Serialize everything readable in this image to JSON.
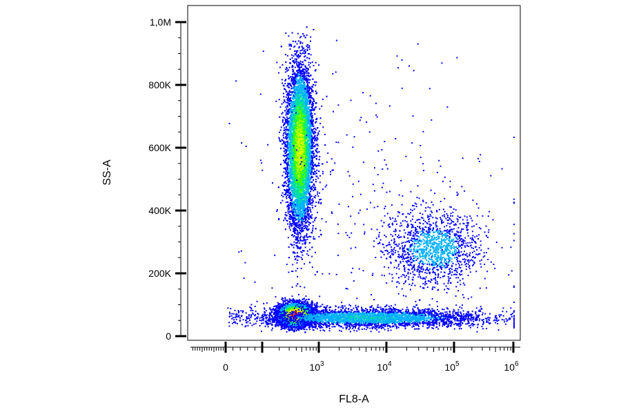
{
  "chart_data": {
    "type": "scatter",
    "style": "density-dot-plot",
    "xlabel": "FL8-A",
    "ylabel": "SS-A",
    "x_scale": "biexponential",
    "y_scale": "linear",
    "ylim": [
      0,
      1000000
    ],
    "xlim": [
      -300,
      1000000
    ],
    "y_ticks": [
      {
        "value": 0,
        "label": "0"
      },
      {
        "value": 200000,
        "label": "200K"
      },
      {
        "value": 400000,
        "label": "400K"
      },
      {
        "value": 600000,
        "label": "600K"
      },
      {
        "value": 800000,
        "label": "800K"
      },
      {
        "value": 1000000,
        "label": "1,0M"
      }
    ],
    "x_ticks": [
      {
        "value": 0,
        "base": "0",
        "exp": ""
      },
      {
        "value": 1000,
        "base": "10",
        "exp": "3"
      },
      {
        "value": 10000,
        "base": "10",
        "exp": "4"
      },
      {
        "value": 100000,
        "base": "10",
        "exp": "5"
      },
      {
        "value": 1000000,
        "base": "10",
        "exp": "6"
      }
    ],
    "color_scale": [
      "#0000ff",
      "#00b0ff",
      "#00e0a0",
      "#40ff00",
      "#c0ff00",
      "#ffff00",
      "#ff9000",
      "#ff2000"
    ],
    "populations": [
      {
        "x_center": 450,
        "x_spread_log": 0.12,
        "y_center": 600000,
        "y_spread": 130000,
        "count": 9000,
        "peak_density": 0.6
      },
      {
        "x_center": 380,
        "x_spread_log": 0.15,
        "y_center": 70000,
        "y_spread": 18000,
        "count": 5000,
        "peak_density": 1.0
      },
      {
        "x_center": 5000,
        "x_spread_log": 0.9,
        "y_center": 60000,
        "y_spread": 15000,
        "count": 3500,
        "peak_density": 0.25
      },
      {
        "x_center": 50000,
        "x_spread_log": 0.35,
        "y_center": 280000,
        "y_spread": 60000,
        "count": 1400,
        "peak_density": 0.2
      },
      {
        "x_center": 5000,
        "x_spread_log": 1.0,
        "y_center": 450000,
        "y_spread": 250000,
        "count": 300,
        "peak_density": 0.05
      }
    ]
  }
}
